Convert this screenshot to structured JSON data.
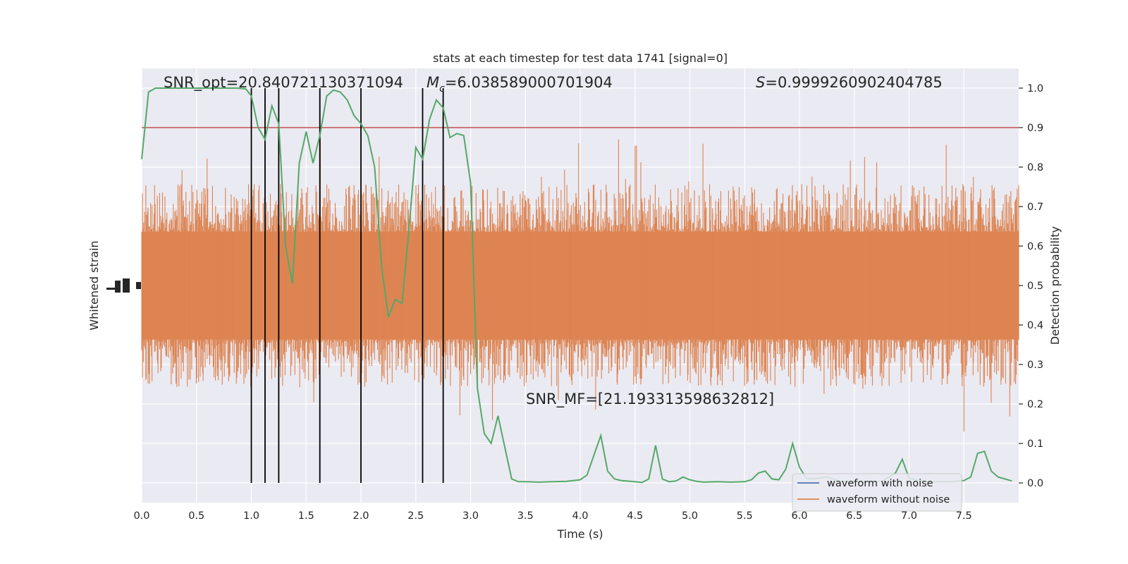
{
  "chart_data": {
    "type": "line",
    "title": "stats at each timestep for test data 1741 [signal=0]",
    "xlabel": "Time (s)",
    "ylabel_left": "Whitened strain",
    "ylabel_right": "Detection probability",
    "xlim": [
      0,
      8
    ],
    "ylim_right": [
      -0.05,
      1.05
    ],
    "x_ticks": [
      "0.0",
      "0.5",
      "1.0",
      "1.5",
      "2.0",
      "2.5",
      "3.0",
      "3.5",
      "4.0",
      "4.5",
      "5.0",
      "5.5",
      "6.0",
      "6.5",
      "7.0",
      "7.5"
    ],
    "y_ticks_right": [
      "0.0",
      "0.1",
      "0.2",
      "0.3",
      "0.4",
      "0.5",
      "0.6",
      "0.7",
      "0.8",
      "0.9",
      "1.0"
    ],
    "grid": true,
    "legend_placement": "lower-right",
    "annotations": {
      "snr_opt": "SNR_opt=20.840721130371094",
      "mc_symbol": "M",
      "mc_sub": "c",
      "mc_value": "=6.038589000701904",
      "s_symbol": "S",
      "s_value": "=0.9999260902404785",
      "snr_mf": "SNR_MF=[21.193313598632812]"
    },
    "threshold": 0.9,
    "vertical_markers": [
      1.0,
      1.125,
      1.25,
      1.625,
      2.0,
      2.5625,
      2.75
    ],
    "series": [
      {
        "name": "waveform with noise",
        "color": "#4c72b0",
        "description_values": []
      },
      {
        "name": "waveform without noise",
        "color": "#dd8452",
        "envelope_center": 0.5,
        "envelope_half_width": 0.22
      },
      {
        "color": "#55a868",
        "x": [
          0.0,
          0.0625,
          0.125,
          0.25,
          0.375,
          0.5,
          0.625,
          0.75,
          0.875,
          0.95,
          1.0,
          1.0625,
          1.125,
          1.1875,
          1.25,
          1.3125,
          1.375,
          1.4375,
          1.5,
          1.5625,
          1.625,
          1.6875,
          1.75,
          1.8125,
          1.875,
          1.9375,
          2.0,
          2.0625,
          2.125,
          2.1875,
          2.25,
          2.3125,
          2.375,
          2.4375,
          2.5,
          2.5625,
          2.625,
          2.6875,
          2.75,
          2.8125,
          2.875,
          2.9375,
          3.0,
          3.0625,
          3.125,
          3.1875,
          3.25,
          3.3125,
          3.375,
          3.4375,
          3.5,
          3.625,
          3.75,
          3.875,
          4.0,
          4.0625,
          4.125,
          4.1875,
          4.25,
          4.3125,
          4.375,
          4.5,
          4.5625,
          4.625,
          4.6875,
          4.75,
          4.8125,
          4.875,
          4.9375,
          5.0,
          5.0625,
          5.125,
          5.25,
          5.375,
          5.5,
          5.5625,
          5.625,
          5.6875,
          5.75,
          5.8125,
          5.875,
          5.9375,
          6.0,
          6.0625,
          6.125,
          6.25,
          6.375,
          6.5,
          6.625,
          6.75,
          6.875,
          6.9375,
          7.0,
          7.125,
          7.25,
          7.375,
          7.5,
          7.5625,
          7.625,
          7.6875,
          7.75,
          7.8125,
          7.9375
        ],
        "y": [
          0.82,
          0.99,
          1.0,
          1.0,
          1.0,
          1.0,
          1.0,
          1.0,
          1.0,
          0.998,
          0.98,
          0.9,
          0.87,
          0.955,
          0.91,
          0.6,
          0.505,
          0.81,
          0.89,
          0.81,
          0.88,
          0.98,
          0.995,
          0.99,
          0.97,
          0.93,
          0.91,
          0.88,
          0.8,
          0.55,
          0.42,
          0.465,
          0.455,
          0.64,
          0.85,
          0.82,
          0.92,
          0.97,
          0.95,
          0.875,
          0.885,
          0.88,
          0.76,
          0.24,
          0.125,
          0.1,
          0.17,
          0.09,
          0.01,
          0.003,
          0.003,
          0.002,
          0.003,
          0.004,
          0.008,
          0.02,
          0.07,
          0.12,
          0.03,
          0.01,
          0.006,
          0.003,
          0.001,
          0.01,
          0.095,
          0.01,
          0.003,
          0.005,
          0.015,
          0.008,
          0.004,
          0.002,
          0.003,
          0.002,
          0.003,
          0.008,
          0.025,
          0.03,
          0.01,
          0.008,
          0.035,
          0.1,
          0.04,
          0.012,
          0.01,
          0.015,
          0.004,
          0.002,
          0.003,
          0.004,
          0.025,
          0.06,
          0.012,
          0.004,
          0.003,
          0.003,
          0.006,
          0.015,
          0.075,
          0.08,
          0.03,
          0.015,
          0.005
        ]
      }
    ]
  },
  "colors": {
    "panel_bg": "#eaeaf2",
    "grid": "#ffffff",
    "threshold": "#c44e52",
    "marker": "#000000",
    "probability": "#55a868",
    "strain": "#dd8452"
  }
}
